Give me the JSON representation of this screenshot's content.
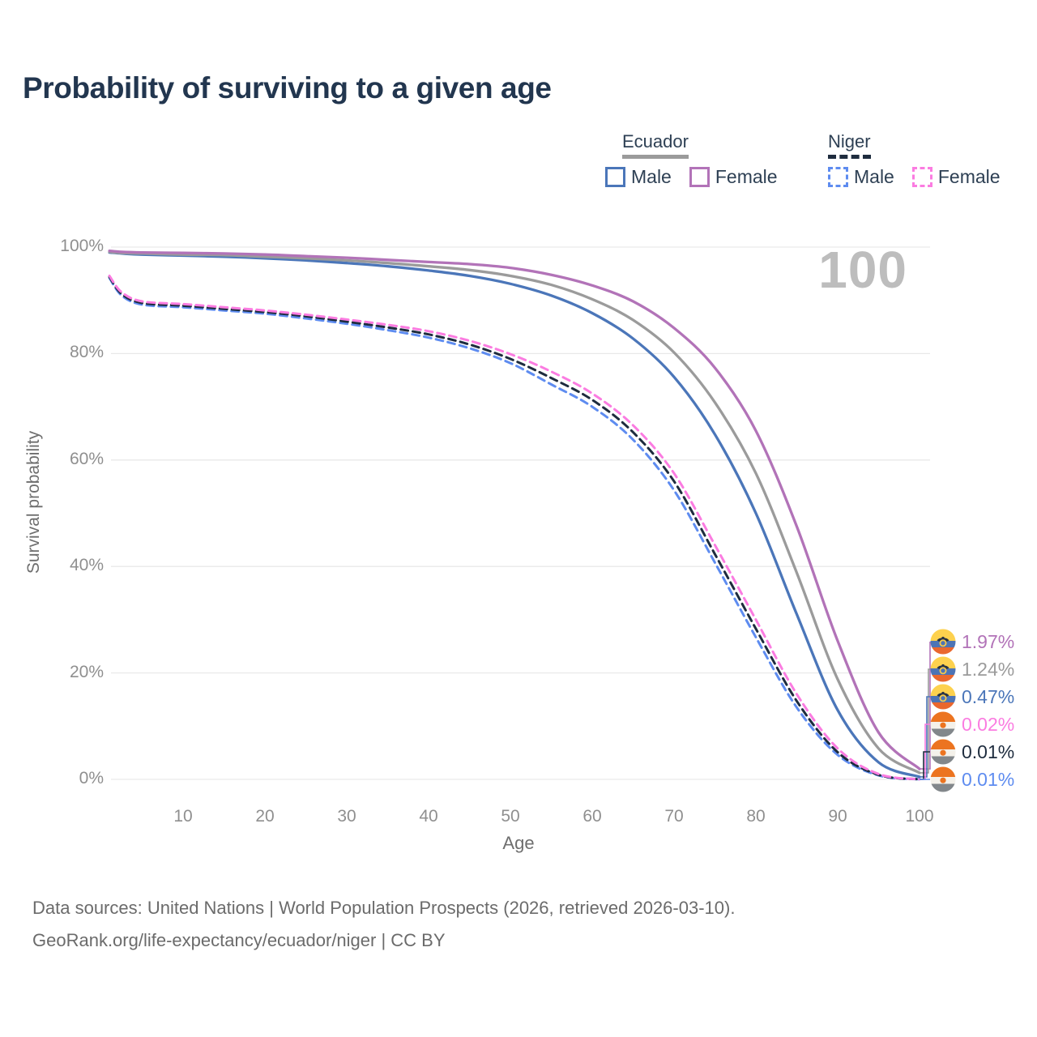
{
  "title": "Probability of surviving to a given age",
  "watermark_age": "100",
  "legend": {
    "groups": [
      {
        "id": "ecuador",
        "label": "Ecuador",
        "line_style": "solid",
        "line_color": "#9b9b9b",
        "items": [
          {
            "id": "male",
            "label": "Male",
            "color": "#4b76b9"
          },
          {
            "id": "female",
            "label": "Female",
            "color": "#b273b8"
          }
        ]
      },
      {
        "id": "niger",
        "label": "Niger",
        "line_style": "dashed",
        "line_color": "#1e2c3e",
        "items": [
          {
            "id": "male",
            "label": "Male",
            "color": "#5e8cf0"
          },
          {
            "id": "female",
            "label": "Female",
            "color": "#fb7ce1"
          }
        ]
      }
    ]
  },
  "chart_data": {
    "type": "line",
    "title": "Probability of surviving to a given age",
    "xlabel": "Age",
    "ylabel": "Survival probability",
    "xlim": [
      0,
      100
    ],
    "ylim": [
      0,
      100
    ],
    "grid": true,
    "legend_position": "top-right",
    "x_ticks": [
      {
        "value": 10,
        "label": "10"
      },
      {
        "value": 20,
        "label": "20"
      },
      {
        "value": 30,
        "label": "30"
      },
      {
        "value": 40,
        "label": "40"
      },
      {
        "value": 50,
        "label": "50"
      },
      {
        "value": 60,
        "label": "60"
      },
      {
        "value": 70,
        "label": "70"
      },
      {
        "value": 80,
        "label": "80"
      },
      {
        "value": 90,
        "label": "90"
      },
      {
        "value": 100,
        "label": "100"
      }
    ],
    "y_ticks": [
      {
        "value": 0,
        "label": "0%"
      },
      {
        "value": 20,
        "label": "20%"
      },
      {
        "value": 40,
        "label": "40%"
      },
      {
        "value": 60,
        "label": "60%"
      },
      {
        "value": 80,
        "label": "80%"
      },
      {
        "value": 100,
        "label": "100%"
      }
    ],
    "x": [
      1,
      2.5,
      5,
      10,
      15,
      20,
      25,
      30,
      35,
      40,
      45,
      50,
      55,
      60,
      65,
      70,
      75,
      80,
      85,
      90,
      95,
      100
    ],
    "series": [
      {
        "id": "niger-male",
        "name": "Niger Male",
        "country": "Niger",
        "flag": "niger",
        "color": "#5e8cf0",
        "dashed": true,
        "values": [
          94.2,
          90.9,
          89.2,
          88.7,
          88.1,
          87.5,
          86.6,
          85.6,
          84.4,
          83.0,
          81.0,
          78.2,
          74.2,
          70.0,
          63.8,
          54.3,
          40.7,
          26.7,
          13.5,
          4.6,
          0.75,
          0.01
        ]
      },
      {
        "id": "niger-all",
        "name": "Niger Both sexes",
        "country": "Niger",
        "flag": "niger",
        "color": "#1e2c3e",
        "dashed": true,
        "values": [
          94.4,
          91.2,
          89.5,
          89.0,
          88.4,
          87.8,
          87.0,
          86.0,
          84.9,
          83.6,
          81.7,
          79.0,
          75.4,
          71.3,
          65.2,
          56.0,
          42.3,
          28.3,
          14.7,
          5.1,
          0.85,
          0.01
        ]
      },
      {
        "id": "niger-female",
        "name": "Niger Female",
        "country": "Niger",
        "flag": "niger",
        "color": "#fb7ce1",
        "dashed": true,
        "values": [
          94.6,
          91.5,
          89.8,
          89.3,
          88.7,
          88.1,
          87.3,
          86.4,
          85.4,
          84.2,
          82.4,
          79.9,
          76.6,
          72.5,
          66.5,
          57.5,
          44.0,
          30.0,
          16.0,
          5.8,
          1.0,
          0.02
        ]
      },
      {
        "id": "ecuador-male",
        "name": "Ecuador Male",
        "country": "Ecuador",
        "flag": "ecuador",
        "color": "#4b76b9",
        "dashed": false,
        "values": [
          99.0,
          98.8,
          98.6,
          98.4,
          98.2,
          97.9,
          97.5,
          97.0,
          96.4,
          95.6,
          94.6,
          93.1,
          90.9,
          87.6,
          82.8,
          75.6,
          64.8,
          50.0,
          31.0,
          13.0,
          3.2,
          0.47
        ]
      },
      {
        "id": "ecuador-all",
        "name": "Ecuador Both sexes",
        "country": "Ecuador",
        "flag": "ecuador",
        "color": "#9b9b9b",
        "dashed": false,
        "values": [
          99.1,
          98.9,
          98.8,
          98.6,
          98.5,
          98.2,
          97.9,
          97.5,
          97.0,
          96.4,
          95.7,
          94.6,
          92.9,
          90.2,
          86.3,
          80.2,
          70.8,
          57.5,
          38.8,
          18.8,
          5.8,
          1.24
        ]
      },
      {
        "id": "ecuador-female",
        "name": "Ecuador Female",
        "country": "Ecuador",
        "flag": "ecuador",
        "color": "#b273b8",
        "dashed": false,
        "values": [
          99.3,
          99.1,
          99.0,
          98.9,
          98.8,
          98.6,
          98.3,
          98.0,
          97.6,
          97.2,
          96.8,
          96.1,
          94.8,
          92.8,
          89.8,
          84.8,
          77.3,
          65.5,
          47.5,
          26.0,
          8.8,
          1.97
        ]
      }
    ],
    "end_labels": [
      {
        "series": "ecuador-female",
        "label": "1.97%"
      },
      {
        "series": "ecuador-all",
        "label": "1.24%"
      },
      {
        "series": "ecuador-male",
        "label": "0.47%"
      },
      {
        "series": "niger-female",
        "label": "0.02%"
      },
      {
        "series": "niger-all",
        "label": "0.01%"
      },
      {
        "series": "niger-male",
        "label": "0.01%"
      }
    ]
  },
  "footer": {
    "line1": "Data sources: United Nations | World Population Prospects (2026, retrieved 2026-03-10).",
    "line2": "GeoRank.org/life-expectancy/ecuador/niger | CC BY"
  }
}
